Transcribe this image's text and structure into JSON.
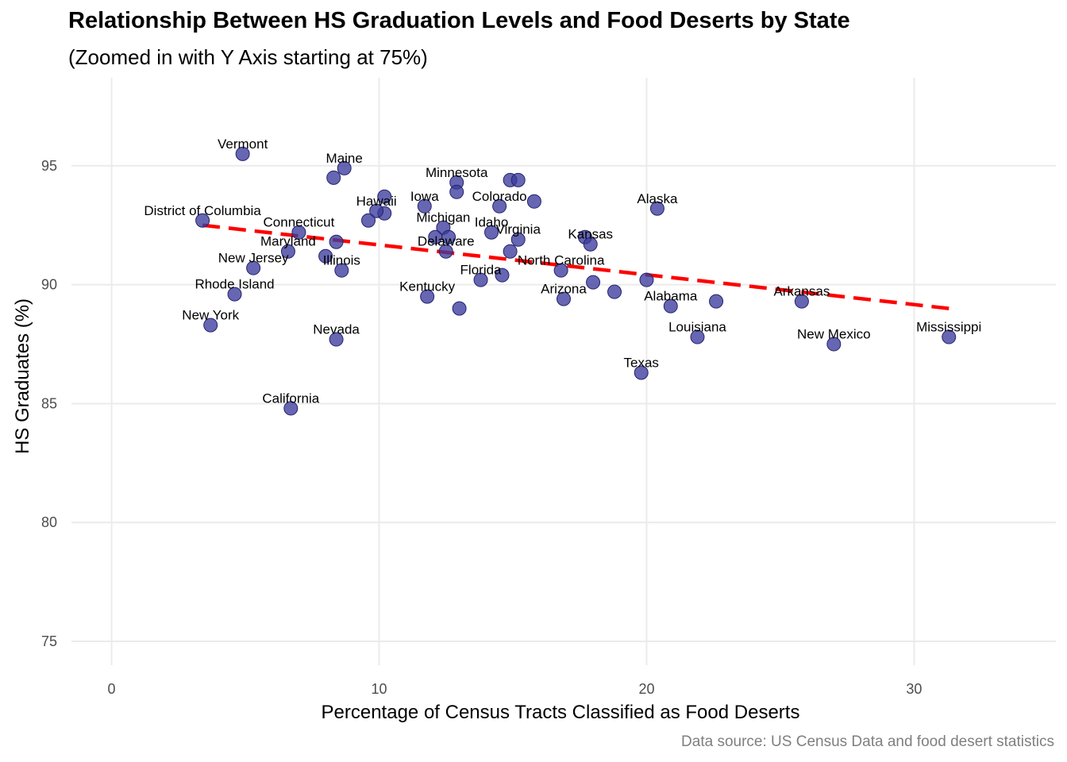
{
  "chart_data": {
    "type": "scatter",
    "title": "Relationship Between HS Graduation Levels and Food Deserts by State",
    "subtitle": "(Zoomed in with Y Axis starting at 75%)",
    "xlabel": "Percentage of Census Tracts Classified as Food Deserts",
    "ylabel": "HS Graduates (%)",
    "caption": "Data source: US Census Data and food desert statistics",
    "xlim": [
      -1.5,
      35.3
    ],
    "ylim": [
      74,
      98.7
    ],
    "x_ticks": [
      0,
      10,
      20,
      30
    ],
    "y_ticks": [
      75,
      80,
      85,
      90,
      95
    ],
    "grid": true,
    "point_color": "#3b3b9c",
    "trend_color": "#ff0000",
    "trend_line": {
      "x": [
        3.4,
        31.3
      ],
      "y": [
        92.5,
        89.0
      ]
    },
    "points": [
      {
        "x": 4.9,
        "y": 95.5,
        "label": "Vermont"
      },
      {
        "x": 8.3,
        "y": 94.5,
        "label": ""
      },
      {
        "x": 8.7,
        "y": 94.9,
        "label": "Maine"
      },
      {
        "x": 12.9,
        "y": 94.3,
        "label": "Minnesota"
      },
      {
        "x": 12.9,
        "y": 93.9,
        "label": ""
      },
      {
        "x": 14.9,
        "y": 94.4,
        "label": ""
      },
      {
        "x": 15.2,
        "y": 94.4,
        "label": ""
      },
      {
        "x": 10.2,
        "y": 93.7,
        "label": ""
      },
      {
        "x": 10.2,
        "y": 93.0,
        "label": ""
      },
      {
        "x": 9.9,
        "y": 93.1,
        "label": "Hawaii"
      },
      {
        "x": 9.6,
        "y": 92.7,
        "label": ""
      },
      {
        "x": 11.7,
        "y": 93.3,
        "label": "Iowa"
      },
      {
        "x": 14.5,
        "y": 93.3,
        "label": "Colorado"
      },
      {
        "x": 15.8,
        "y": 93.5,
        "label": ""
      },
      {
        "x": 20.4,
        "y": 93.2,
        "label": "Alaska"
      },
      {
        "x": 3.4,
        "y": 92.7,
        "label": "District of Columbia"
      },
      {
        "x": 7.0,
        "y": 92.2,
        "label": "Connecticut"
      },
      {
        "x": 8.4,
        "y": 91.8,
        "label": ""
      },
      {
        "x": 6.6,
        "y": 91.4,
        "label": "Maryland"
      },
      {
        "x": 8.0,
        "y": 91.2,
        "label": ""
      },
      {
        "x": 12.4,
        "y": 92.4,
        "label": "Michigan"
      },
      {
        "x": 12.1,
        "y": 92.0,
        "label": ""
      },
      {
        "x": 12.6,
        "y": 92.0,
        "label": ""
      },
      {
        "x": 14.2,
        "y": 92.2,
        "label": "Idaho"
      },
      {
        "x": 12.5,
        "y": 91.4,
        "label": "Delaware"
      },
      {
        "x": 15.2,
        "y": 91.9,
        "label": "Virginia"
      },
      {
        "x": 14.9,
        "y": 91.4,
        "label": ""
      },
      {
        "x": 17.7,
        "y": 92.0,
        "label": ""
      },
      {
        "x": 17.9,
        "y": 91.7,
        "label": "Kansas"
      },
      {
        "x": 5.3,
        "y": 90.7,
        "label": "New Jersey"
      },
      {
        "x": 8.6,
        "y": 90.6,
        "label": "Illinois"
      },
      {
        "x": 16.8,
        "y": 90.6,
        "label": "North Carolina"
      },
      {
        "x": 14.6,
        "y": 90.4,
        "label": ""
      },
      {
        "x": 13.8,
        "y": 90.2,
        "label": "Florida"
      },
      {
        "x": 20.0,
        "y": 90.2,
        "label": ""
      },
      {
        "x": 18.0,
        "y": 90.1,
        "label": ""
      },
      {
        "x": 4.6,
        "y": 89.6,
        "label": "Rhode Island"
      },
      {
        "x": 11.8,
        "y": 89.5,
        "label": "Kentucky"
      },
      {
        "x": 16.9,
        "y": 89.4,
        "label": "Arizona"
      },
      {
        "x": 18.8,
        "y": 89.7,
        "label": ""
      },
      {
        "x": 13.0,
        "y": 89.0,
        "label": ""
      },
      {
        "x": 20.9,
        "y": 89.1,
        "label": "Alabama"
      },
      {
        "x": 22.6,
        "y": 89.3,
        "label": ""
      },
      {
        "x": 25.8,
        "y": 89.3,
        "label": "Arkansas"
      },
      {
        "x": 3.7,
        "y": 88.3,
        "label": "New York"
      },
      {
        "x": 8.4,
        "y": 87.7,
        "label": "Nevada"
      },
      {
        "x": 21.9,
        "y": 87.8,
        "label": "Louisiana"
      },
      {
        "x": 27.0,
        "y": 87.5,
        "label": "New Mexico"
      },
      {
        "x": 31.3,
        "y": 87.8,
        "label": "Mississippi"
      },
      {
        "x": 19.8,
        "y": 86.3,
        "label": "Texas"
      },
      {
        "x": 6.7,
        "y": 84.8,
        "label": "California"
      }
    ]
  }
}
